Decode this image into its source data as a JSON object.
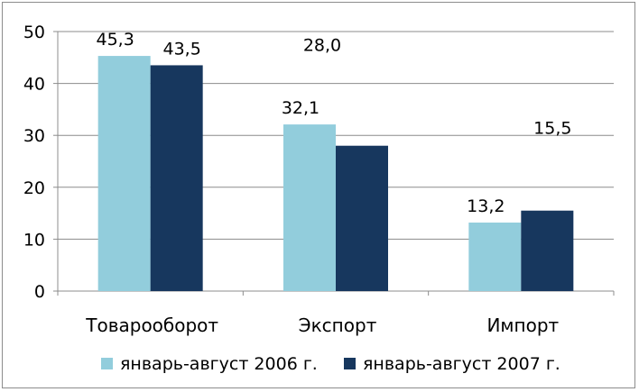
{
  "chart_data": {
    "type": "bar",
    "categories": [
      "Товарооборот",
      "Экспорт",
      "Импорт"
    ],
    "series": [
      {
        "name": "январь-август 2006 г.",
        "values": [
          45.3,
          32.1,
          13.2
        ],
        "labels": [
          "45,3",
          "32,1",
          "13,2"
        ],
        "color": "#92cddc"
      },
      {
        "name": "январь-август 2007 г.",
        "values": [
          43.5,
          28.0,
          15.5
        ],
        "labels": [
          "43,5",
          "28,0",
          "15,5"
        ],
        "color": "#17375e"
      }
    ],
    "ylim": [
      0,
      50
    ],
    "yticks": [
      0,
      10,
      20,
      30,
      40,
      50
    ],
    "grid": true,
    "legend_position": "bottom",
    "title": "",
    "xlabel": "",
    "ylabel": ""
  }
}
